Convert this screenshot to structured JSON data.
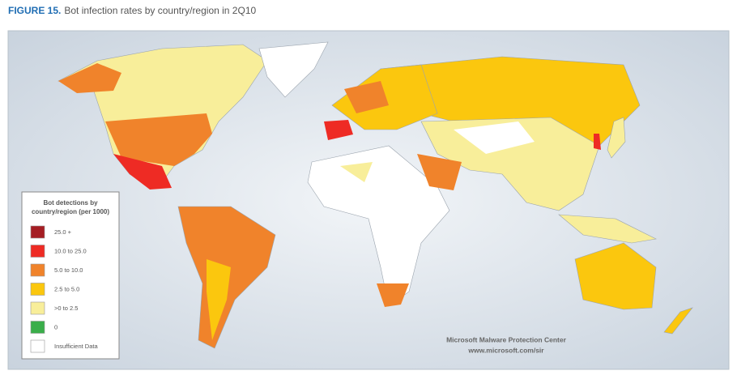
{
  "header": {
    "figure_label": "FIGURE 15.",
    "title": "Bot infection rates by country/region in 2Q10"
  },
  "legend": {
    "title_lines": [
      "Bot detections by",
      "country/region (per 1000)"
    ],
    "items": [
      {
        "label": "25.0 +",
        "color": "#a51d23"
      },
      {
        "label": "10.0 to 25.0",
        "color": "#ee2b24"
      },
      {
        "label": "5.0 to 10.0",
        "color": "#f0832b"
      },
      {
        "label": "2.5 to 5.0",
        "color": "#fbc70e"
      },
      {
        "label": ">0 to 2.5",
        "color": "#f8ee9a"
      },
      {
        "label": "0",
        "color": "#3aae4a"
      },
      {
        "label": "Insufficient Data",
        "color": "#ffffff"
      }
    ]
  },
  "credit": [
    "Microsoft Malware Protection Center",
    "www.microsoft.com/sir"
  ]
}
